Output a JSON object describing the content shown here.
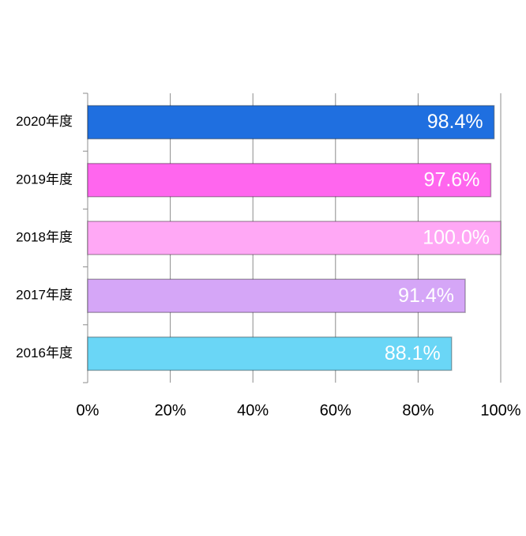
{
  "chart_data": {
    "type": "bar",
    "orientation": "horizontal",
    "categories": [
      "2020年度",
      "2019年度",
      "2018年度",
      "2017年度",
      "2016年度"
    ],
    "values": [
      98.4,
      97.6,
      100.0,
      91.4,
      88.1
    ],
    "value_labels": [
      "98.4%",
      "97.6%",
      "100.0%",
      "91.4%",
      "88.1%"
    ],
    "colors": [
      "#1f6fe0",
      "#ff66ee",
      "#ffa8f5",
      "#d5a6f7",
      "#6ad6f6"
    ],
    "xlim": [
      0,
      100
    ],
    "xticks": [
      {
        "value": 0,
        "label": "0%"
      },
      {
        "value": 20,
        "label": "20%"
      },
      {
        "value": 40,
        "label": "40%"
      },
      {
        "value": 60,
        "label": "60%"
      },
      {
        "value": 80,
        "label": "80%"
      },
      {
        "value": 100,
        "label": "100%"
      }
    ],
    "grid": true
  }
}
